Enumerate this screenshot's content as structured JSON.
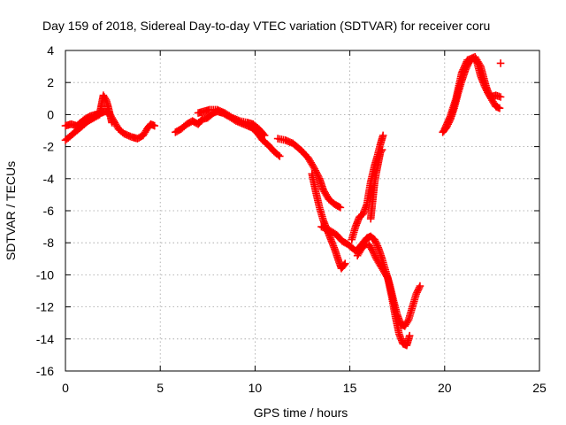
{
  "chart_data": {
    "type": "scatter",
    "title": "Day 159 of 2018, Sidereal Day-to-day VTEC variation (SDTVAR) for receiver coru",
    "xlabel": "GPS time / hours",
    "ylabel": "SDTVAR / TECUs",
    "xlim": [
      0,
      25
    ],
    "ylim": [
      -16,
      4
    ],
    "xticks": [
      0,
      5,
      10,
      15,
      20,
      25
    ],
    "yticks": [
      4,
      2,
      0,
      -2,
      -4,
      -6,
      -8,
      -10,
      -12,
      -14,
      -16
    ],
    "grid": true,
    "legend": "none",
    "marker": "plus",
    "color": "#ff0000",
    "series": [
      {
        "points": [
          [
            0.0,
            -0.7
          ],
          [
            0.3,
            -0.6
          ],
          [
            0.6,
            -0.7
          ],
          [
            1.0,
            -0.3
          ],
          [
            1.3,
            -0.1
          ],
          [
            1.6,
            0.0
          ],
          [
            1.9,
            0.1
          ],
          [
            2.1,
            0.2
          ],
          [
            2.3,
            0.1
          ],
          [
            2.5,
            -0.3
          ],
          [
            2.8,
            -0.9
          ],
          [
            3.1,
            -1.2
          ],
          [
            3.5,
            -1.4
          ],
          [
            3.8,
            -1.5
          ],
          [
            4.1,
            -1.3
          ],
          [
            4.3,
            -0.9
          ],
          [
            4.5,
            -0.6
          ],
          [
            4.7,
            -0.7
          ]
        ]
      },
      {
        "points": [
          [
            0.0,
            -1.6
          ],
          [
            0.3,
            -1.3
          ],
          [
            0.6,
            -1.0
          ],
          [
            0.9,
            -0.7
          ],
          [
            1.2,
            -0.4
          ],
          [
            1.5,
            -0.2
          ],
          [
            1.8,
            0.0
          ],
          [
            1.9,
            0.6
          ],
          [
            2.0,
            1.2
          ],
          [
            2.15,
            0.9
          ],
          [
            2.25,
            0.5
          ],
          [
            2.35,
            0.0
          ],
          [
            2.45,
            -0.5
          ]
        ]
      },
      {
        "points": [
          [
            5.8,
            -1.1
          ],
          [
            6.1,
            -0.9
          ],
          [
            6.4,
            -0.6
          ],
          [
            6.7,
            -0.4
          ],
          [
            7.0,
            -0.6
          ],
          [
            7.2,
            -0.3
          ],
          [
            7.5,
            -0.2
          ],
          [
            7.8,
            0.1
          ],
          [
            8.0,
            0.2
          ],
          [
            8.3,
            0.1
          ],
          [
            8.6,
            -0.1
          ],
          [
            9.0,
            -0.4
          ],
          [
            9.4,
            -0.6
          ],
          [
            9.8,
            -0.8
          ],
          [
            10.1,
            -1.1
          ],
          [
            10.4,
            -1.6
          ],
          [
            10.7,
            -1.9
          ],
          [
            11.0,
            -2.3
          ],
          [
            11.3,
            -2.6
          ]
        ]
      },
      {
        "points": [
          [
            7.0,
            0.1
          ],
          [
            7.3,
            0.2
          ],
          [
            7.6,
            0.3
          ],
          [
            8.0,
            0.3
          ],
          [
            8.4,
            0.1
          ],
          [
            8.8,
            -0.2
          ],
          [
            9.2,
            -0.4
          ],
          [
            9.6,
            -0.5
          ],
          [
            9.9,
            -0.6
          ],
          [
            10.2,
            -0.9
          ],
          [
            10.5,
            -1.3
          ]
        ]
      },
      {
        "points": [
          [
            11.2,
            -1.5
          ],
          [
            11.6,
            -1.6
          ],
          [
            12.0,
            -1.8
          ],
          [
            12.4,
            -2.2
          ],
          [
            12.8,
            -2.7
          ],
          [
            13.1,
            -3.3
          ],
          [
            13.4,
            -4.0
          ],
          [
            13.6,
            -4.7
          ],
          [
            13.9,
            -5.3
          ],
          [
            14.2,
            -5.6
          ],
          [
            14.5,
            -5.8
          ]
        ]
      },
      {
        "points": [
          [
            13.0,
            -3.7
          ],
          [
            13.2,
            -4.8
          ],
          [
            13.4,
            -5.8
          ],
          [
            13.6,
            -6.6
          ],
          [
            13.8,
            -7.2
          ],
          [
            14.0,
            -7.8
          ],
          [
            14.2,
            -8.4
          ],
          [
            14.4,
            -9.1
          ],
          [
            14.55,
            -9.6
          ],
          [
            14.75,
            -9.3
          ]
        ]
      },
      {
        "points": [
          [
            13.5,
            -7.0
          ],
          [
            13.9,
            -7.2
          ],
          [
            14.3,
            -7.5
          ],
          [
            14.6,
            -7.9
          ],
          [
            14.9,
            -8.1
          ],
          [
            15.1,
            -8.3
          ],
          [
            15.3,
            -8.5
          ],
          [
            15.5,
            -8.3
          ],
          [
            15.7,
            -8.0
          ],
          [
            15.9,
            -7.7
          ],
          [
            16.1,
            -7.6
          ],
          [
            16.3,
            -7.8
          ],
          [
            16.5,
            -8.3
          ],
          [
            16.7,
            -9.0
          ],
          [
            16.9,
            -9.8
          ],
          [
            17.1,
            -10.6
          ],
          [
            17.3,
            -11.6
          ],
          [
            17.5,
            -12.5
          ],
          [
            17.7,
            -13.1
          ],
          [
            17.9,
            -13.2
          ],
          [
            18.1,
            -12.8
          ],
          [
            18.3,
            -12.0
          ],
          [
            18.5,
            -11.2
          ],
          [
            18.7,
            -10.7
          ]
        ]
      },
      {
        "points": [
          [
            15.1,
            -7.8
          ],
          [
            15.3,
            -7.0
          ],
          [
            15.5,
            -6.4
          ],
          [
            15.7,
            -6.2
          ],
          [
            15.9,
            -5.6
          ],
          [
            16.1,
            -4.2
          ],
          [
            16.3,
            -3.2
          ],
          [
            16.45,
            -2.6
          ],
          [
            16.6,
            -1.9
          ],
          [
            16.75,
            -1.3
          ]
        ]
      },
      {
        "points": [
          [
            16.1,
            -6.5
          ],
          [
            16.2,
            -5.4
          ],
          [
            16.3,
            -4.3
          ],
          [
            16.4,
            -3.6
          ],
          [
            16.5,
            -3.0
          ],
          [
            16.6,
            -2.4
          ],
          [
            16.7,
            -2.2
          ]
        ]
      },
      {
        "points": [
          [
            15.4,
            -8.8
          ],
          [
            15.6,
            -8.4
          ],
          [
            15.8,
            -8.1
          ],
          [
            16.0,
            -8.1
          ],
          [
            16.2,
            -8.5
          ],
          [
            16.4,
            -9.0
          ],
          [
            16.6,
            -9.4
          ],
          [
            16.8,
            -9.8
          ],
          [
            17.0,
            -10.2
          ],
          [
            17.2,
            -11.3
          ],
          [
            17.4,
            -12.6
          ],
          [
            17.6,
            -13.7
          ],
          [
            17.8,
            -14.3
          ],
          [
            18.0,
            -14.4
          ],
          [
            18.15,
            -13.8
          ]
        ]
      },
      {
        "points": [
          [
            19.9,
            -1.1
          ],
          [
            20.1,
            -0.8
          ],
          [
            20.3,
            -0.3
          ],
          [
            20.5,
            0.4
          ],
          [
            20.7,
            1.3
          ],
          [
            20.9,
            2.1
          ],
          [
            21.1,
            2.8
          ],
          [
            21.3,
            3.3
          ],
          [
            21.5,
            3.5
          ],
          [
            21.7,
            3.3
          ],
          [
            21.9,
            2.4
          ],
          [
            22.1,
            1.8
          ],
          [
            22.3,
            1.3
          ],
          [
            22.5,
            0.9
          ],
          [
            22.7,
            0.5
          ],
          [
            22.9,
            0.4
          ]
        ]
      },
      {
        "points": [
          [
            20.0,
            -0.9
          ],
          [
            20.3,
            -0.1
          ],
          [
            20.6,
            1.0
          ],
          [
            20.9,
            2.6
          ],
          [
            21.2,
            3.4
          ],
          [
            21.6,
            3.6
          ],
          [
            21.9,
            3.0
          ],
          [
            22.2,
            1.7
          ],
          [
            22.4,
            1.1
          ],
          [
            22.7,
            1.2
          ],
          [
            22.95,
            1.1
          ]
        ]
      },
      {
        "points": [
          [
            22.95,
            3.2
          ]
        ]
      }
    ]
  }
}
